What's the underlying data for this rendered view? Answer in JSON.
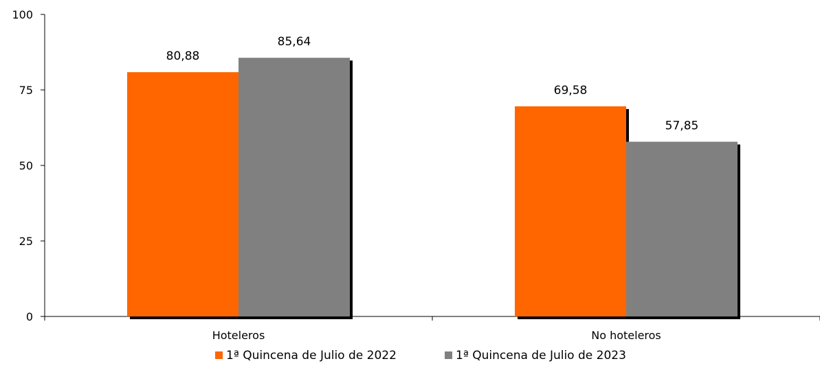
{
  "chart_data": {
    "type": "bar",
    "categories": [
      "Hoteleros",
      "No hoteleros"
    ],
    "series": [
      {
        "name": "1ª Quincena de Julio de 2022",
        "values": [
          80.88,
          69.58
        ],
        "labels": [
          "80,88",
          "69,58"
        ],
        "color": "#ff6600"
      },
      {
        "name": "1ª Quincena de Julio de 2023",
        "values": [
          85.64,
          57.85
        ],
        "labels": [
          "85,64",
          "57,85"
        ],
        "color": "#808080"
      }
    ],
    "ylim": [
      0,
      100
    ],
    "yticks": [
      0,
      25,
      50,
      75,
      100
    ],
    "ytick_labels": [
      "0",
      "25",
      "50",
      "75",
      "100"
    ],
    "grid": false,
    "legend_position": "bottom",
    "title": "",
    "xlabel": "",
    "ylabel": ""
  }
}
